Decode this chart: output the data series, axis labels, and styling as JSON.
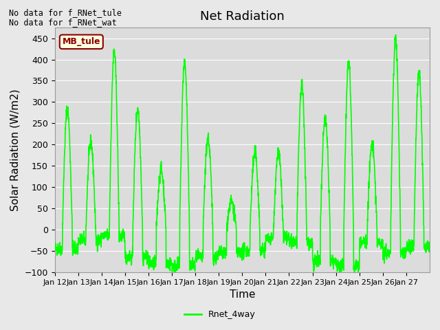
{
  "title": "Net Radiation",
  "ylabel": "Solar Radiation (W/m2)",
  "xlabel": "Time",
  "ylim": [
    -100,
    475
  ],
  "yticks": [
    -100,
    -50,
    0,
    50,
    100,
    150,
    200,
    250,
    300,
    350,
    400,
    450
  ],
  "line_color": "#00FF00",
  "line_width": 1.2,
  "bg_color": "#E8E8E8",
  "plot_bg_color": "#DCDCDC",
  "no_data_text1": "No data for f_RNet_tule",
  "no_data_text2": "No data for f_RNet_wat",
  "legend_label": "Rnet_4way",
  "annotation_label": "MB_tule",
  "x_tick_labels": [
    "Jan 12",
    "Jan 13",
    "Jan 14",
    "Jan 15",
    "Jan 16",
    "Jan 17",
    "Jan 18",
    "Jan 19",
    "Jan 20",
    "Jan 21",
    "Jan 22",
    "Jan 23",
    "Jan 24",
    "Jan 25",
    "Jan 26",
    "Jan 27"
  ],
  "num_days": 16,
  "title_fontsize": 13,
  "axis_label_fontsize": 11,
  "tick_fontsize": 9,
  "figsize": [
    6.4,
    4.8
  ],
  "dpi": 100,
  "day_peaks": [
    285,
    205,
    420,
    285,
    140,
    395,
    215,
    65,
    180,
    180,
    340,
    260,
    395,
    200,
    450,
    370
  ],
  "night_vals": [
    -45,
    -25,
    -15,
    -65,
    -80,
    -85,
    -65,
    -55,
    -50,
    -20,
    -30,
    -75,
    -85,
    -30,
    -55,
    -40
  ]
}
